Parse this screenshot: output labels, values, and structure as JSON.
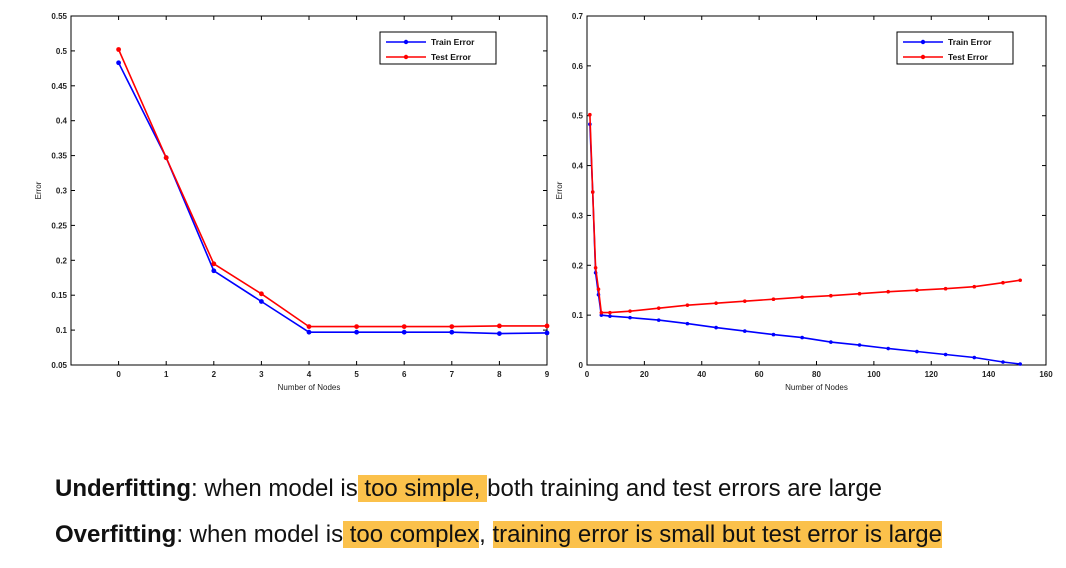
{
  "chart_data": [
    {
      "type": "line",
      "xlabel": "Number of Nodes",
      "ylabel": "Error",
      "xlim": [
        -1,
        9
      ],
      "ylim": [
        0.05,
        0.55
      ],
      "xticks": [
        0,
        1,
        2,
        3,
        4,
        5,
        6,
        7,
        8,
        9
      ],
      "yticks": [
        0.05,
        0.1,
        0.15,
        0.2,
        0.25,
        0.3,
        0.35,
        0.4,
        0.45,
        0.5,
        0.55
      ],
      "xtick_labels": [
        "0",
        "1",
        "2",
        "3",
        "4",
        "5",
        "6",
        "7",
        "8",
        "9"
      ],
      "ytick_labels": [
        "0.05",
        "0.1",
        "0.15",
        "0.2",
        "0.25",
        "0.3",
        "0.35",
        "0.4",
        "0.45",
        "0.5",
        "0.55"
      ],
      "legend_position": "top-right",
      "series": [
        {
          "name": "Train Error",
          "color": "#0000ff",
          "x": [
            0,
            1,
            2,
            3,
            4,
            5,
            6,
            7,
            8,
            9
          ],
          "y": [
            0.483,
            0.347,
            0.185,
            0.141,
            0.097,
            0.097,
            0.097,
            0.097,
            0.095,
            0.096
          ]
        },
        {
          "name": "Test Error",
          "color": "#ff0000",
          "x": [
            0,
            1,
            2,
            3,
            4,
            5,
            6,
            7,
            8,
            9
          ],
          "y": [
            0.502,
            0.347,
            0.195,
            0.152,
            0.105,
            0.105,
            0.105,
            0.105,
            0.106,
            0.106
          ]
        }
      ]
    },
    {
      "type": "line",
      "xlabel": "Number of Nodes",
      "ylabel": "Error",
      "xlim": [
        0,
        160
      ],
      "ylim": [
        0,
        0.7
      ],
      "xticks": [
        0,
        20,
        40,
        60,
        80,
        100,
        120,
        140,
        160
      ],
      "yticks": [
        0,
        0.1,
        0.2,
        0.3,
        0.4,
        0.5,
        0.6,
        0.7
      ],
      "xtick_labels": [
        "0",
        "20",
        "40",
        "60",
        "80",
        "100",
        "120",
        "140",
        "160"
      ],
      "ytick_labels": [
        "0",
        "0.1",
        "0.2",
        "0.3",
        "0.4",
        "0.5",
        "0.6",
        "0.7"
      ],
      "legend_position": "top-right",
      "series": [
        {
          "name": "Train Error",
          "color": "#0000ff",
          "x": [
            1,
            2,
            3,
            4,
            5,
            8,
            15,
            25,
            35,
            45,
            55,
            65,
            75,
            85,
            95,
            105,
            115,
            125,
            135,
            145,
            151
          ],
          "y": [
            0.483,
            0.347,
            0.185,
            0.141,
            0.1,
            0.098,
            0.095,
            0.09,
            0.083,
            0.075,
            0.068,
            0.061,
            0.055,
            0.046,
            0.04,
            0.033,
            0.027,
            0.021,
            0.015,
            0.006,
            0.002
          ]
        },
        {
          "name": "Test Error",
          "color": "#ff0000",
          "x": [
            1,
            2,
            3,
            4,
            5,
            8,
            15,
            25,
            35,
            45,
            55,
            65,
            75,
            85,
            95,
            105,
            115,
            125,
            135,
            145,
            151
          ],
          "y": [
            0.502,
            0.347,
            0.195,
            0.152,
            0.105,
            0.105,
            0.108,
            0.114,
            0.12,
            0.124,
            0.128,
            0.132,
            0.136,
            0.139,
            0.143,
            0.147,
            0.15,
            0.153,
            0.157,
            0.165,
            0.17
          ]
        }
      ]
    }
  ],
  "text": {
    "line1": {
      "term": "Underfitting",
      "colon": ": when model is",
      "highlight": " too simple, ",
      "rest": "both training and test errors are large"
    },
    "line2": {
      "term": "Overfitting",
      "colon": ": when model is",
      "highlight1": " too complex",
      "mid": ", ",
      "highlight2": "training error is small but test error is large"
    }
  }
}
